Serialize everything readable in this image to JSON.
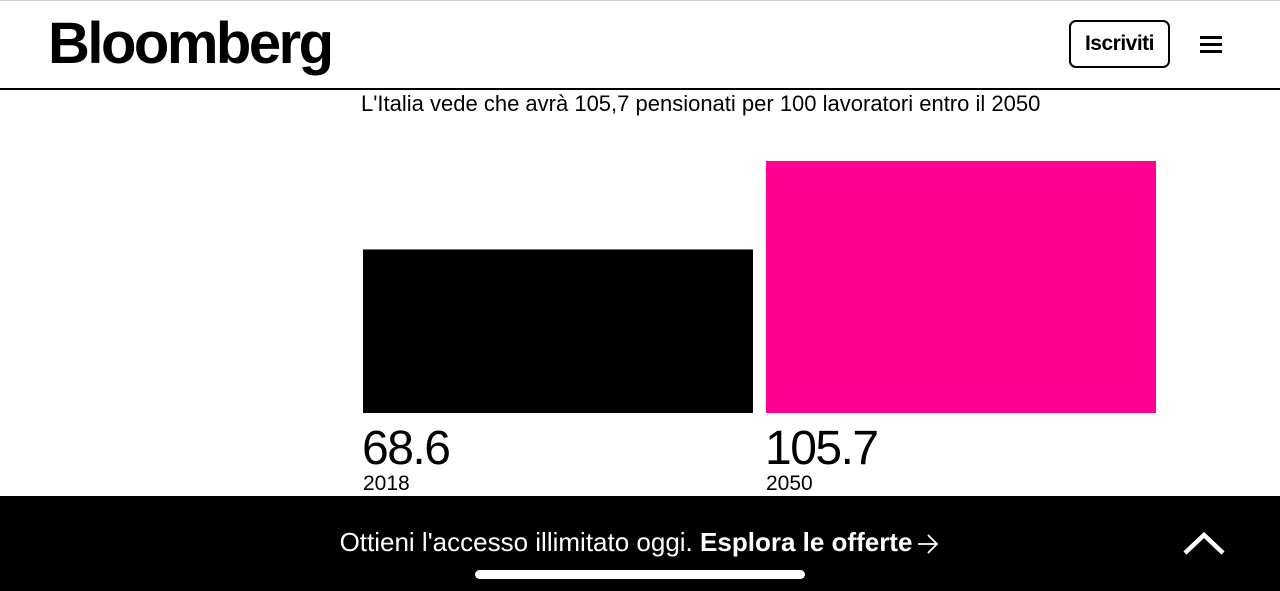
{
  "header": {
    "logo": "Bloomberg",
    "subscribe_label": "Iscriviti",
    "menu_icon": "hamburger-menu-icon"
  },
  "chart_data": {
    "type": "bar",
    "title": "L'Italia vede che avrà 105,7 pensionati per 100 lavoratori entro il 2050",
    "categories": [
      "2018",
      "2050"
    ],
    "values": [
      68.6,
      105.7
    ],
    "value_labels": [
      "68.6",
      "105.7"
    ],
    "colors": [
      "#000000",
      "#ff0090"
    ],
    "ylim": [
      0,
      105.7
    ],
    "grid": false,
    "legend": "none"
  },
  "banner": {
    "lead_text": "Ottieni l'accesso illimitato oggi.",
    "cta_text": "Esplora le offerte",
    "arrow_icon": "arrow-right-icon",
    "chevron_icon": "chevron-up-icon",
    "background": "#000000",
    "text_color": "#ffffff"
  }
}
